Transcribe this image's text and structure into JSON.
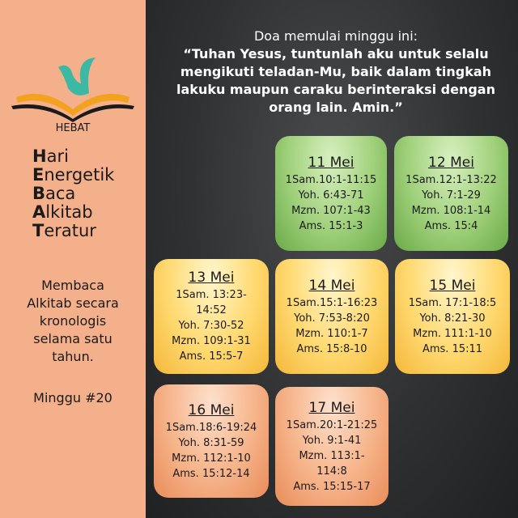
{
  "logo": {
    "text": "HEBAT"
  },
  "acronym": [
    {
      "initial": "H",
      "rest": "ari"
    },
    {
      "initial": "E",
      "rest": "nergetik"
    },
    {
      "initial": "B",
      "rest": "aca"
    },
    {
      "initial": "A",
      "rest": "lkitab"
    },
    {
      "initial": "T",
      "rest": "eratur"
    }
  ],
  "description": [
    "Membaca",
    "Alkitab secara",
    "kronologis",
    "selama satu",
    "tahun."
  ],
  "week": "Minggu #20",
  "prayer": {
    "heading": "Doa memulai minggu ini:",
    "lines": [
      "“Tuhan Yesus, tuntunlah aku untuk selalu",
      "mengikuti teladan-Mu, baik dalam tingkah",
      "lakuku maupun caraku berinteraksi dengan",
      "orang lain. Amin.”"
    ]
  },
  "colors": {
    "green": "#9fd07a",
    "yellow": "#ffd970",
    "orange": "#f6b48a",
    "panel": "#f4b08a"
  },
  "cards": [
    {
      "date": "11 Mei",
      "lines": [
        "1Sam.10:1-11:15",
        "Yoh. 6:43-71",
        "Mzm. 107:1-43",
        "Ams. 15:1-3"
      ]
    },
    {
      "date": "12 Mei",
      "lines": [
        "1Sam.12:1-13:22",
        "Yoh. 7:1-29",
        "Mzm. 108:1-14",
        "Ams. 15:4"
      ]
    },
    {
      "date": "13 Mei",
      "lines": [
        "1Sam. 13:23-",
        "14:52",
        "Yoh. 7:30-52",
        "Mzm. 109:1-31",
        "Ams. 15:5-7"
      ]
    },
    {
      "date": "14 Mei",
      "lines": [
        "1Sam.15:1-16:23",
        "Yoh. 7:53-8:20",
        "Mzm. 110:1-7",
        "Ams. 15:8-10"
      ]
    },
    {
      "date": "15 Mei",
      "lines": [
        "1Sam. 17:1-18:5",
        "Yoh. 8:21-30",
        "Mzm. 111:1-10",
        "Ams. 15:11"
      ]
    },
    {
      "date": "16 Mei",
      "lines": [
        "1Sam.18:6-19:24",
        "Yoh. 8:31-59",
        "Mzm. 112:1-10",
        "Ams. 15:12-14"
      ]
    },
    {
      "date": "17 Mei",
      "lines": [
        "1Sam.20:1-21:25",
        "Yoh. 9:1-41",
        "Mzm. 113:1-",
        "114:8",
        "Ams. 15:15-17"
      ]
    }
  ]
}
